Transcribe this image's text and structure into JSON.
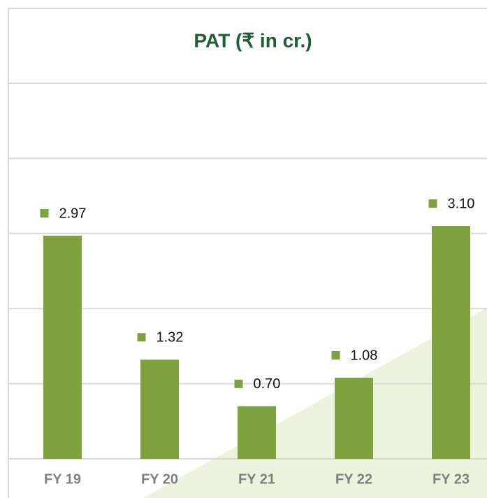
{
  "chart_data": {
    "type": "bar",
    "title": "PAT (₹ in cr.)",
    "categories": [
      "FY 19",
      "FY 20",
      "FY 21",
      "FY 22",
      "FY 23"
    ],
    "values": [
      2.97,
      1.32,
      0.7,
      1.08,
      3.1
    ],
    "value_labels": [
      "2.97",
      "1.32",
      "0.70",
      "1.08",
      "3.10"
    ],
    "color": "#7ea23d",
    "ylim": [
      0,
      5
    ],
    "yticks": [
      0,
      1,
      2,
      3,
      4,
      5
    ],
    "grid": true
  }
}
